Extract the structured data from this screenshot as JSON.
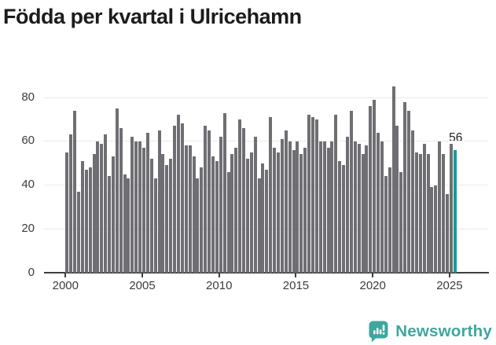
{
  "page": {
    "title": "Födda per kvartal i Ulricehamn"
  },
  "annotation": {
    "last_value_label": "56"
  },
  "branding": {
    "name": "Newsworthy"
  },
  "colors": {
    "bar": "#6e6e73",
    "highlight": "#149a9b",
    "grid": "#e9e9e9",
    "axis": "#3f3f3f",
    "tick_label": "#3c3c3c",
    "title": "#1c1c1c",
    "brand": "#3ea79e"
  },
  "chart_data": {
    "type": "bar",
    "title": "Födda per kvartal i Ulricehamn",
    "xlabel": "",
    "ylabel": "",
    "x_start": "2000Q1",
    "x_end": "2025Q2",
    "x_tick_labels": [
      "2000",
      "2005",
      "2010",
      "2015",
      "2020",
      "2025"
    ],
    "y_ticks": [
      0,
      20,
      40,
      60,
      80
    ],
    "ylim": [
      0,
      87
    ],
    "grid": true,
    "legend_position": "none",
    "highlight_last_bar": true,
    "last_bar_value": 56,
    "values": [
      55,
      63,
      74,
      37,
      51,
      47,
      48,
      54,
      60,
      59,
      63,
      44,
      53,
      75,
      66,
      45,
      43,
      62,
      60,
      60,
      57,
      64,
      52,
      43,
      65,
      54,
      49,
      52,
      67,
      72,
      68,
      58,
      58,
      53,
      43,
      48,
      67,
      65,
      53,
      51,
      62,
      73,
      46,
      54,
      57,
      70,
      66,
      52,
      55,
      62,
      43,
      50,
      47,
      71,
      57,
      55,
      61,
      65,
      60,
      56,
      60,
      54,
      57,
      72,
      71,
      70,
      60,
      60,
      57,
      60,
      72,
      51,
      49,
      62,
      74,
      60,
      59,
      54,
      58,
      76,
      79,
      64,
      60,
      44,
      48,
      85,
      67,
      46,
      78,
      74,
      65,
      55,
      54,
      59,
      54,
      39,
      40,
      60,
      54,
      36,
      59,
      56
    ]
  }
}
